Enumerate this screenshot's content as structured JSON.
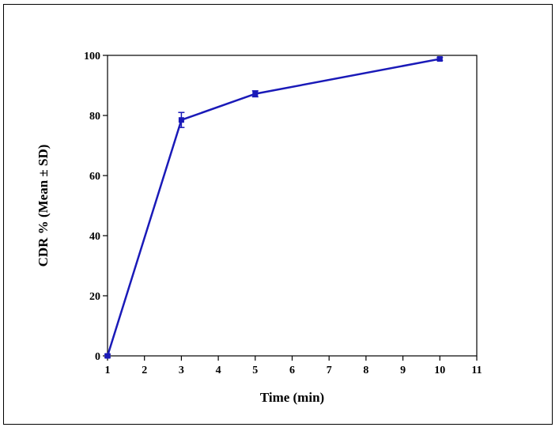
{
  "chart_data": {
    "type": "line",
    "title": "",
    "xlabel": "Time (min)",
    "ylabel": "CDR % (Mean ± SD)",
    "xlim": [
      1,
      11
    ],
    "ylim": [
      0,
      100
    ],
    "x_ticks": [
      "1",
      "2",
      "3",
      "4",
      "5",
      "6",
      "7",
      "8",
      "9",
      "10",
      "11"
    ],
    "y_ticks": [
      "0",
      "20",
      "40",
      "60",
      "80",
      "100"
    ],
    "grid": false,
    "legend": "none",
    "series": [
      {
        "color": "#1a1ab8",
        "x": [
          1,
          3,
          5,
          10
        ],
        "y": [
          0,
          78.5,
          87.2,
          98.8
        ],
        "sd": [
          0.5,
          2.5,
          1.0,
          0.5
        ]
      }
    ]
  }
}
